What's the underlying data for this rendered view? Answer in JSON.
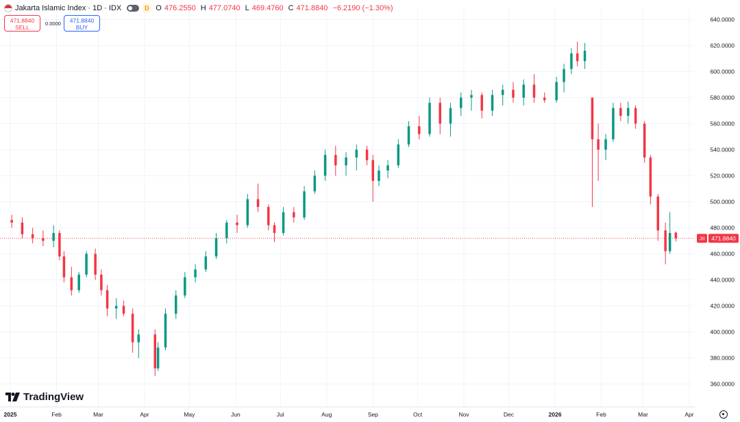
{
  "header": {
    "title": "Jakarta Islamic Index · 1D · IDX",
    "badge": "D",
    "open_label": "O",
    "open": "476.2550",
    "high_label": "H",
    "high": "477.0740",
    "low_label": "L",
    "low": "469.4760",
    "close_label": "C",
    "close": "471.8840",
    "change": "−6.2190 (−1.30%)"
  },
  "trade": {
    "sell_price": "471.8840",
    "sell_label": "SELL",
    "spread": "0.0000",
    "buy_price": "471.8840",
    "buy_label": "BUY"
  },
  "branding": {
    "logo_text": "TradingView"
  },
  "chart_data": {
    "type": "candlestick",
    "symbol_tag": "JII",
    "last_price": 471.884,
    "last_price_label": "471.8840",
    "ylim": [
      350,
      645
    ],
    "y_ticks": [
      "360.0000",
      "380.0000",
      "400.0000",
      "420.0000",
      "440.0000",
      "460.0000",
      "480.0000",
      "500.0000",
      "520.0000",
      "540.0000",
      "560.0000",
      "580.0000",
      "600.0000",
      "620.0000",
      "640.0000"
    ],
    "x_ticks": [
      "2025",
      "Feb",
      "Mar",
      "Apr",
      "May",
      "Jun",
      "Jul",
      "Aug",
      "Sep",
      "Oct",
      "Nov",
      "Dec",
      "2026",
      "Feb",
      "Mar",
      "Apr"
    ],
    "grid": true,
    "colors": {
      "up": "#089981",
      "down": "#f23645",
      "grid": "#f0f3fa",
      "axis_text": "#131722"
    },
    "series": [
      {
        "t": "2025-01-02",
        "o": 486,
        "h": 490,
        "l": 480,
        "c": 484
      },
      {
        "t": "2025-01-09",
        "o": 484,
        "h": 488,
        "l": 472,
        "c": 475
      },
      {
        "t": "2025-01-16",
        "o": 475,
        "h": 480,
        "l": 468,
        "c": 472
      },
      {
        "t": "2025-01-23",
        "o": 472,
        "h": 478,
        "l": 466,
        "c": 470
      },
      {
        "t": "2025-01-30",
        "o": 470,
        "h": 482,
        "l": 465,
        "c": 476
      },
      {
        "t": "2025-02-03",
        "o": 476,
        "h": 478,
        "l": 455,
        "c": 458
      },
      {
        "t": "2025-02-06",
        "o": 458,
        "h": 462,
        "l": 438,
        "c": 442
      },
      {
        "t": "2025-02-11",
        "o": 442,
        "h": 450,
        "l": 428,
        "c": 432
      },
      {
        "t": "2025-02-16",
        "o": 432,
        "h": 446,
        "l": 430,
        "c": 444
      },
      {
        "t": "2025-02-21",
        "o": 444,
        "h": 462,
        "l": 442,
        "c": 460
      },
      {
        "t": "2025-02-27",
        "o": 460,
        "h": 464,
        "l": 440,
        "c": 444
      },
      {
        "t": "2025-03-03",
        "o": 444,
        "h": 448,
        "l": 428,
        "c": 432
      },
      {
        "t": "2025-03-07",
        "o": 432,
        "h": 436,
        "l": 412,
        "c": 418
      },
      {
        "t": "2025-03-13",
        "o": 418,
        "h": 426,
        "l": 410,
        "c": 420
      },
      {
        "t": "2025-03-18",
        "o": 420,
        "h": 424,
        "l": 412,
        "c": 414
      },
      {
        "t": "2025-03-24",
        "o": 414,
        "h": 418,
        "l": 384,
        "c": 392
      },
      {
        "t": "2025-03-28",
        "o": 392,
        "h": 402,
        "l": 380,
        "c": 398
      },
      {
        "t": "2025-04-08",
        "o": 398,
        "h": 402,
        "l": 366,
        "c": 372
      },
      {
        "t": "2025-04-10",
        "o": 372,
        "h": 392,
        "l": 370,
        "c": 388
      },
      {
        "t": "2025-04-15",
        "o": 388,
        "h": 418,
        "l": 386,
        "c": 414
      },
      {
        "t": "2025-04-22",
        "o": 414,
        "h": 432,
        "l": 410,
        "c": 428
      },
      {
        "t": "2025-04-28",
        "o": 428,
        "h": 446,
        "l": 426,
        "c": 442
      },
      {
        "t": "2025-05-05",
        "o": 442,
        "h": 452,
        "l": 438,
        "c": 448
      },
      {
        "t": "2025-05-12",
        "o": 448,
        "h": 462,
        "l": 446,
        "c": 458
      },
      {
        "t": "2025-05-19",
        "o": 458,
        "h": 476,
        "l": 456,
        "c": 472
      },
      {
        "t": "2025-05-26",
        "o": 472,
        "h": 486,
        "l": 468,
        "c": 484
      },
      {
        "t": "2025-06-02",
        "o": 484,
        "h": 490,
        "l": 476,
        "c": 482
      },
      {
        "t": "2025-06-09",
        "o": 482,
        "h": 506,
        "l": 480,
        "c": 502
      },
      {
        "t": "2025-06-16",
        "o": 502,
        "h": 514,
        "l": 492,
        "c": 496
      },
      {
        "t": "2025-06-23",
        "o": 496,
        "h": 498,
        "l": 478,
        "c": 482
      },
      {
        "t": "2025-06-27",
        "o": 482,
        "h": 484,
        "l": 469,
        "c": 476
      },
      {
        "t": "2025-07-03",
        "o": 476,
        "h": 496,
        "l": 474,
        "c": 492
      },
      {
        "t": "2025-07-10",
        "o": 492,
        "h": 496,
        "l": 484,
        "c": 488
      },
      {
        "t": "2025-07-17",
        "o": 488,
        "h": 512,
        "l": 486,
        "c": 508
      },
      {
        "t": "2025-07-24",
        "o": 508,
        "h": 524,
        "l": 506,
        "c": 520
      },
      {
        "t": "2025-07-31",
        "o": 520,
        "h": 540,
        "l": 516,
        "c": 536
      },
      {
        "t": "2025-08-07",
        "o": 536,
        "h": 543,
        "l": 520,
        "c": 528
      },
      {
        "t": "2025-08-14",
        "o": 528,
        "h": 538,
        "l": 520,
        "c": 534
      },
      {
        "t": "2025-08-21",
        "o": 534,
        "h": 544,
        "l": 524,
        "c": 540
      },
      {
        "t": "2025-08-28",
        "o": 540,
        "h": 543,
        "l": 528,
        "c": 532
      },
      {
        "t": "2025-09-01",
        "o": 532,
        "h": 536,
        "l": 500,
        "c": 516
      },
      {
        "t": "2025-09-05",
        "o": 516,
        "h": 528,
        "l": 512,
        "c": 524
      },
      {
        "t": "2025-09-11",
        "o": 524,
        "h": 532,
        "l": 518,
        "c": 528
      },
      {
        "t": "2025-09-18",
        "o": 528,
        "h": 548,
        "l": 526,
        "c": 544
      },
      {
        "t": "2025-09-25",
        "o": 544,
        "h": 562,
        "l": 542,
        "c": 558
      },
      {
        "t": "2025-10-02",
        "o": 558,
        "h": 566,
        "l": 548,
        "c": 552
      },
      {
        "t": "2025-10-09",
        "o": 552,
        "h": 580,
        "l": 550,
        "c": 576
      },
      {
        "t": "2025-10-16",
        "o": 576,
        "h": 580,
        "l": 552,
        "c": 560
      },
      {
        "t": "2025-10-23",
        "o": 560,
        "h": 576,
        "l": 550,
        "c": 572
      },
      {
        "t": "2025-10-30",
        "o": 572,
        "h": 584,
        "l": 566,
        "c": 580
      },
      {
        "t": "2025-11-06",
        "o": 580,
        "h": 586,
        "l": 570,
        "c": 582
      },
      {
        "t": "2025-11-13",
        "o": 582,
        "h": 584,
        "l": 564,
        "c": 570
      },
      {
        "t": "2025-11-20",
        "o": 570,
        "h": 586,
        "l": 566,
        "c": 582
      },
      {
        "t": "2025-11-27",
        "o": 582,
        "h": 590,
        "l": 574,
        "c": 586
      },
      {
        "t": "2025-12-04",
        "o": 586,
        "h": 592,
        "l": 576,
        "c": 580
      },
      {
        "t": "2025-12-11",
        "o": 580,
        "h": 594,
        "l": 574,
        "c": 590
      },
      {
        "t": "2025-12-18",
        "o": 590,
        "h": 598,
        "l": 576,
        "c": 580
      },
      {
        "t": "2025-12-25",
        "o": 580,
        "h": 584,
        "l": 576,
        "c": 578
      },
      {
        "t": "2026-01-02",
        "o": 578,
        "h": 596,
        "l": 576,
        "c": 592
      },
      {
        "t": "2026-01-07",
        "o": 592,
        "h": 606,
        "l": 584,
        "c": 602
      },
      {
        "t": "2026-01-12",
        "o": 602,
        "h": 618,
        "l": 598,
        "c": 614
      },
      {
        "t": "2026-01-16",
        "o": 614,
        "h": 623,
        "l": 604,
        "c": 608
      },
      {
        "t": "2026-01-21",
        "o": 608,
        "h": 622,
        "l": 602,
        "c": 616
      },
      {
        "t": "2026-01-26",
        "o": 580,
        "h": 580,
        "l": 496,
        "c": 548
      },
      {
        "t": "2026-01-30",
        "o": 548,
        "h": 560,
        "l": 516,
        "c": 540
      },
      {
        "t": "2026-02-04",
        "o": 540,
        "h": 552,
        "l": 532,
        "c": 548
      },
      {
        "t": "2026-02-09",
        "o": 548,
        "h": 576,
        "l": 546,
        "c": 572
      },
      {
        "t": "2026-02-14",
        "o": 572,
        "h": 576,
        "l": 562,
        "c": 566
      },
      {
        "t": "2026-02-19",
        "o": 566,
        "h": 577,
        "l": 560,
        "c": 572
      },
      {
        "t": "2026-02-24",
        "o": 572,
        "h": 574,
        "l": 556,
        "c": 560
      },
      {
        "t": "2026-03-02",
        "o": 560,
        "h": 562,
        "l": 530,
        "c": 534
      },
      {
        "t": "2026-03-06",
        "o": 534,
        "h": 536,
        "l": 498,
        "c": 504
      },
      {
        "t": "2026-03-11",
        "o": 504,
        "h": 506,
        "l": 470,
        "c": 478
      },
      {
        "t": "2026-03-16",
        "o": 478,
        "h": 484,
        "l": 452,
        "c": 462
      },
      {
        "t": "2026-03-19",
        "o": 462,
        "h": 492,
        "l": 460,
        "c": 476
      },
      {
        "t": "2026-03-23",
        "o": 476.255,
        "h": 477.074,
        "l": 469.476,
        "c": 471.884
      }
    ]
  }
}
